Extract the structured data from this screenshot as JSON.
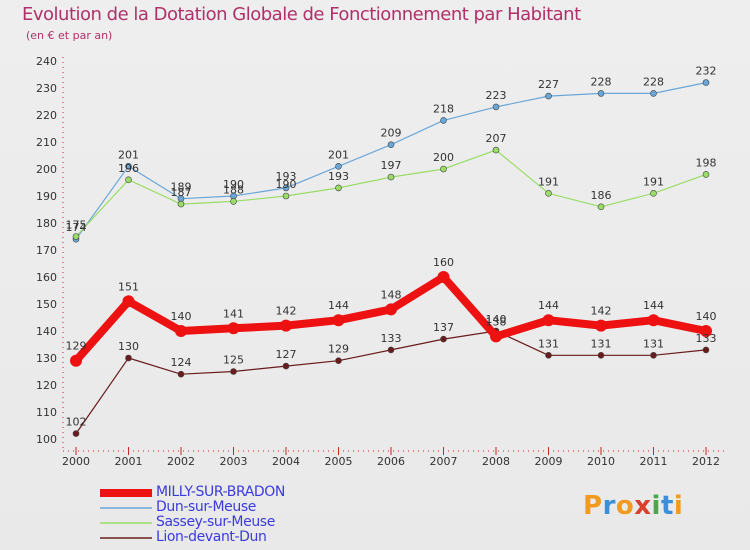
{
  "header": {
    "title": "Evolution de la Dotation Globale de Fonctionnement par Habitant",
    "subtitle": "(en € et par an)"
  },
  "logo": {
    "text": "Proxiti",
    "colors": [
      "#f29a1f",
      "#3a8fd8",
      "#f29a1f",
      "#d8402c",
      "#4aa84a",
      "#3a8fd8",
      "#f29a1f"
    ]
  },
  "chart_data": {
    "type": "line",
    "title": "Evolution de la Dotation Globale de Fonctionnement par Habitant",
    "subtitle": "(en € et par an)",
    "x": [
      "2000",
      "2001",
      "2002",
      "2003",
      "2004",
      "2005",
      "2006",
      "2007",
      "2008",
      "2009",
      "2010",
      "2011",
      "2012"
    ],
    "ylim": [
      100,
      240
    ],
    "yticks": [
      100,
      110,
      120,
      130,
      140,
      150,
      160,
      170,
      180,
      190,
      200,
      210,
      220,
      230,
      240
    ],
    "grid": false,
    "legend_position": "bottom-left",
    "series": [
      {
        "name": "MILLY-SUR-BRADON",
        "color": "#ee1111",
        "values": [
          129,
          151,
          140,
          141,
          142,
          144,
          148,
          160,
          138,
          144,
          142,
          144,
          140
        ],
        "labels": [
          "129",
          "151",
          "140",
          "141",
          "142",
          "144",
          "148",
          "160",
          "138",
          "144",
          "142",
          "144",
          "140"
        ]
      },
      {
        "name": "Dun-sur-Meuse",
        "color": "#6aa6d8",
        "values": [
          174,
          201,
          189,
          190,
          193,
          201,
          209,
          218,
          223,
          227,
          228,
          228,
          232
        ],
        "labels": [
          "174",
          "201",
          "189",
          "190",
          "193",
          "201",
          "209",
          "218",
          "223",
          "227",
          "228",
          "228",
          "232"
        ]
      },
      {
        "name": "Sassey-sur-Meuse",
        "color": "#99dd66",
        "values": [
          175,
          196,
          187,
          188,
          190,
          193,
          197,
          200,
          207,
          191,
          186,
          191,
          198
        ],
        "labels": [
          "175",
          "196",
          "187",
          "188",
          "190",
          "193",
          "197",
          "200",
          "207",
          "191",
          "186",
          "191",
          "198"
        ]
      },
      {
        "name": "Lion-devant-Dun",
        "color": "#6a1c1c",
        "values": [
          102,
          130,
          124,
          125,
          127,
          129,
          133,
          137,
          140,
          131,
          131,
          131,
          133
        ],
        "labels": [
          "102",
          "130",
          "124",
          "125",
          "127",
          "129",
          "133",
          "137",
          "140",
          "131",
          "131",
          "131",
          "133"
        ]
      }
    ]
  }
}
